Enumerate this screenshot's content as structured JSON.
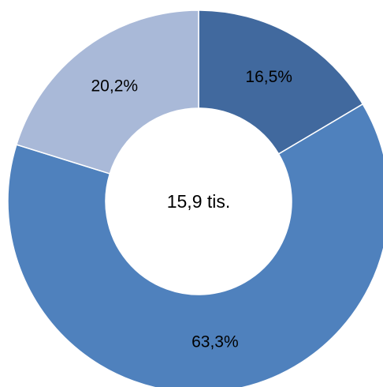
{
  "chart_data": {
    "type": "pie",
    "variant": "donut",
    "center_label": "15,9 tis.",
    "slices": [
      {
        "value": 16.5,
        "label": "16,5%",
        "color": "#41699e"
      },
      {
        "value": 63.3,
        "label": "63,3%",
        "color": "#4f81bd"
      },
      {
        "value": 20.2,
        "label": "20,2%",
        "color": "#a9b9d8"
      }
    ],
    "start": "12 o'clock",
    "direction": "clockwise",
    "legend": "none"
  }
}
